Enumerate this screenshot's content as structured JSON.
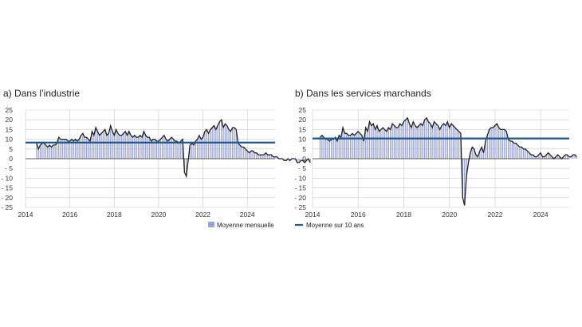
{
  "colors": {
    "bar": "#9aa4d3",
    "line": "#222222",
    "avg": "#1f5a96",
    "grid": "#c8c8c8"
  },
  "legend": {
    "monthly_label": "Moyenne mensuelle",
    "avg_label": "Moyenne sur 10 ans"
  },
  "chart_data": [
    {
      "type": "bar",
      "title": "Dans l’industrie",
      "panel_letter": "a)",
      "ylim": [
        -25,
        25
      ],
      "yticks": [
        "25",
        "20",
        "15",
        "10",
        "5",
        "0",
        "- 5",
        "- 10",
        "- 15",
        "- 20",
        "- 25"
      ],
      "xlim": [
        2014,
        2025.25
      ],
      "xticks": [
        "2014",
        "2016",
        "2018",
        "2020",
        "2022",
        "2024"
      ],
      "grid": true,
      "ten_year_average": 8.3,
      "x_start": 2014.5,
      "x_step_months": 1,
      "values": [
        8,
        5,
        7,
        8,
        8,
        7,
        6,
        7,
        6,
        7,
        7,
        8,
        11,
        10,
        10,
        10,
        10,
        9,
        9,
        10,
        9,
        10,
        9,
        10,
        12,
        13,
        11,
        11,
        10,
        9,
        14,
        12,
        16,
        14,
        12,
        13,
        14,
        15,
        12,
        13,
        17,
        14,
        12,
        15,
        13,
        12,
        12,
        13,
        14,
        12,
        14,
        12,
        11,
        12,
        11,
        11,
        12,
        11,
        14,
        12,
        11,
        11,
        9,
        10,
        10,
        9,
        9,
        10,
        11,
        12,
        10,
        9,
        10,
        11,
        10,
        9,
        9,
        8,
        9,
        10,
        -7,
        -9,
        -1,
        7,
        8,
        7,
        9,
        10,
        12,
        10,
        11,
        14,
        15,
        13,
        15,
        16,
        17,
        15,
        17,
        19,
        20,
        16,
        18,
        17,
        15,
        14,
        16,
        16,
        15,
        8,
        7,
        6,
        6,
        5,
        4,
        3,
        4,
        4,
        3,
        3,
        2,
        2,
        2,
        2,
        3,
        2,
        2,
        2,
        1,
        1,
        1,
        0,
        0,
        0,
        -1,
        -1,
        0,
        -1,
        0,
        0,
        0,
        -2,
        -2,
        -1,
        -1,
        -2,
        -1,
        0,
        -2
      ]
    },
    {
      "type": "bar",
      "title": "Dans les services marchands",
      "panel_letter": "b)",
      "ylim": [
        -25,
        25
      ],
      "yticks": [
        "25",
        "20",
        "15",
        "10",
        "5",
        "0",
        "- 5",
        "- 10",
        "- 15",
        "- 20",
        "- 25"
      ],
      "xlim": [
        2014,
        2025.25
      ],
      "xticks": [
        "2014",
        "2016",
        "2018",
        "2020",
        "2022",
        "2024"
      ],
      "grid": true,
      "ten_year_average": 10.4,
      "x_start": 2014.33,
      "x_step_months": 1,
      "values": [
        11,
        12,
        11,
        10,
        10,
        9,
        10,
        10,
        11,
        9,
        12,
        11,
        16,
        13,
        13,
        12,
        12,
        13,
        12,
        13,
        14,
        13,
        12,
        9,
        16,
        14,
        19,
        17,
        18,
        15,
        17,
        14,
        15,
        16,
        15,
        14,
        16,
        15,
        18,
        17,
        16,
        16,
        18,
        17,
        19,
        20,
        21,
        18,
        16,
        19,
        17,
        16,
        17,
        18,
        17,
        20,
        21,
        19,
        18,
        16,
        19,
        18,
        17,
        15,
        17,
        18,
        17,
        19,
        16,
        18,
        17,
        16,
        15,
        14,
        13,
        -20,
        -24,
        -9,
        -2,
        3,
        6,
        5,
        2,
        1,
        4,
        6,
        3,
        9,
        12,
        15,
        16,
        16,
        17,
        18,
        16,
        15,
        15,
        15,
        14,
        10,
        9,
        9,
        8,
        8,
        7,
        6,
        6,
        5,
        5,
        4,
        3,
        2,
        2,
        1,
        1,
        2,
        3,
        1,
        1,
        2,
        3,
        2,
        1,
        0,
        1,
        2,
        1,
        0,
        1,
        2,
        2,
        1,
        1,
        2,
        2,
        1
      ]
    }
  ]
}
